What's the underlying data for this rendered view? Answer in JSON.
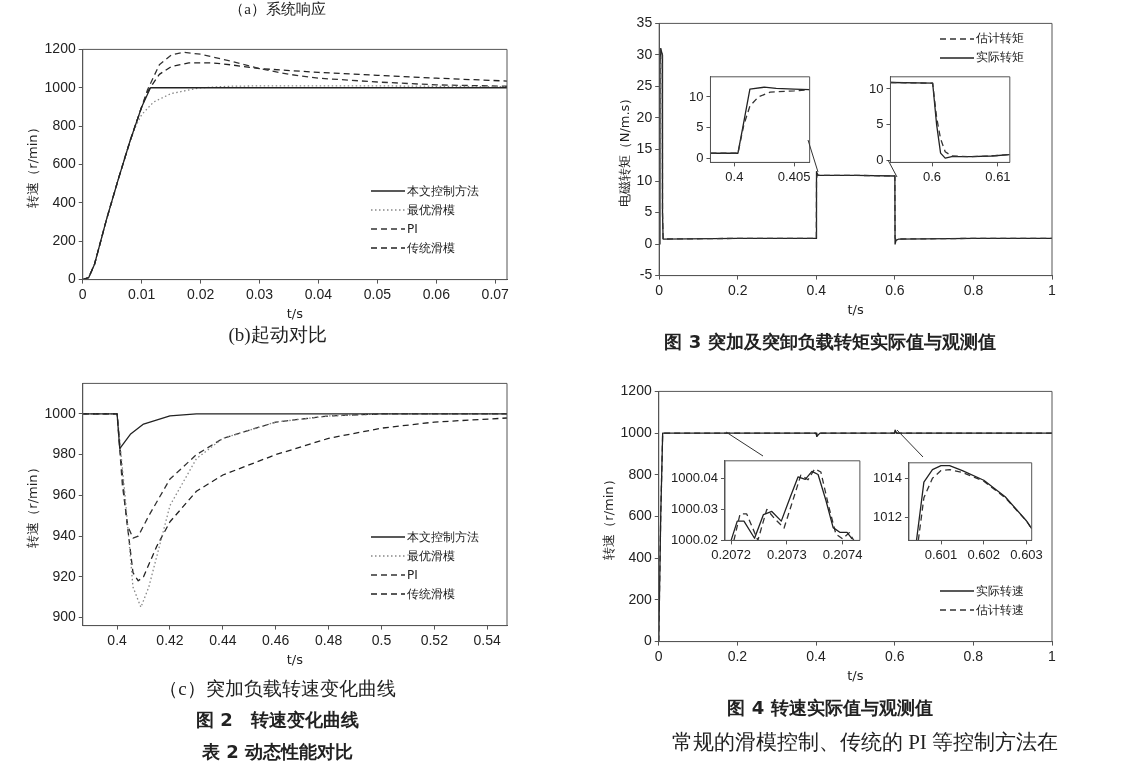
{
  "chart_data": [
    {
      "type": "line",
      "title": "(b)起动对比",
      "xlabel": "t/s",
      "ylabel": "转速（r/min）",
      "annotations": [
        "（a）系统响应"
      ],
      "xlim": [
        0,
        0.072
      ],
      "ylim": [
        0,
        1200
      ],
      "xticks": [
        0,
        0.01,
        0.02,
        0.03,
        0.04,
        0.05,
        0.06,
        0.07
      ],
      "yticks": [
        0,
        200,
        400,
        600,
        800,
        1000,
        1200
      ],
      "legend": "bottom right",
      "series": [
        {
          "name": "本文控制方法",
          "color": "#222222",
          "line_style": "solid",
          "x": [
            0,
            0.001,
            0.002,
            0.004,
            0.006,
            0.008,
            0.01,
            0.0115,
            0.02,
            0.072
          ],
          "values": [
            0,
            10,
            80,
            310,
            520,
            720,
            900,
            1000,
            1000,
            1000
          ]
        },
        {
          "name": "最优滑模",
          "color": "#888888",
          "line_style": "dotted",
          "x": [
            0,
            0.001,
            0.002,
            0.004,
            0.006,
            0.008,
            0.009,
            0.01,
            0.012,
            0.015,
            0.02,
            0.025,
            0.03,
            0.05,
            0.072
          ],
          "values": [
            0,
            10,
            80,
            310,
            520,
            720,
            800,
            860,
            925,
            970,
            1000,
            1008,
            1010,
            1010,
            1005
          ]
        },
        {
          "name": "PI",
          "color": "#333333",
          "line_style": "dashed",
          "x": [
            0,
            0.001,
            0.002,
            0.004,
            0.006,
            0.008,
            0.01,
            0.011,
            0.013,
            0.015,
            0.017,
            0.02,
            0.025,
            0.03,
            0.035,
            0.04,
            0.05,
            0.06,
            0.072
          ],
          "values": [
            0,
            10,
            80,
            310,
            520,
            720,
            900,
            990,
            1120,
            1170,
            1185,
            1175,
            1140,
            1100,
            1070,
            1050,
            1030,
            1015,
            1008
          ]
        },
        {
          "name": "传统滑模",
          "color": "#222222",
          "line_style": "dashed",
          "x": [
            0,
            0.001,
            0.002,
            0.004,
            0.006,
            0.008,
            0.01,
            0.011,
            0.013,
            0.015,
            0.018,
            0.022,
            0.025,
            0.03,
            0.04,
            0.05,
            0.06,
            0.072
          ],
          "values": [
            0,
            10,
            80,
            310,
            520,
            720,
            900,
            980,
            1070,
            1110,
            1130,
            1130,
            1120,
            1100,
            1080,
            1065,
            1050,
            1035
          ]
        }
      ]
    },
    {
      "type": "line",
      "title": "（c）突加负载转速变化曲线",
      "xlabel": "t/s",
      "ylabel": "转速（r/min）",
      "annotations": [
        "图 2　转速变化曲线",
        "表 2 动态性能对比"
      ],
      "xlim": [
        0.387,
        0.5475
      ],
      "ylim": [
        896,
        1015
      ],
      "xticks": [
        0.4,
        0.42,
        0.44,
        0.46,
        0.48,
        0.5,
        0.52,
        0.54
      ],
      "yticks": [
        900,
        920,
        940,
        960,
        980,
        1000
      ],
      "legend": "bottom right",
      "series": [
        {
          "name": "本文控制方法",
          "color": "#222222",
          "line_style": "solid",
          "x": [
            0.387,
            0.4,
            0.401,
            0.405,
            0.41,
            0.42,
            0.43,
            0.5475
          ],
          "values": [
            1000,
            1000,
            983,
            990,
            995,
            999,
            1000,
            1000
          ]
        },
        {
          "name": "最优滑模",
          "color": "#888888",
          "line_style": "dotted",
          "x": [
            0.387,
            0.4,
            0.403,
            0.406,
            0.409,
            0.412,
            0.416,
            0.42,
            0.43,
            0.44,
            0.46,
            0.48,
            0.5,
            0.5475
          ],
          "values": [
            1000,
            1000,
            960,
            915,
            905,
            915,
            935,
            955,
            978,
            988,
            996,
            999,
            1000,
            1000
          ]
        },
        {
          "name": "PI",
          "color": "#333333",
          "line_style": "dashed",
          "x": [
            0.387,
            0.4,
            0.402,
            0.404,
            0.406,
            0.408,
            0.412,
            0.42,
            0.43,
            0.44,
            0.46,
            0.48,
            0.5,
            0.5475
          ],
          "values": [
            1000,
            1000,
            965,
            945,
            939,
            940,
            950,
            968,
            980,
            988,
            996,
            999,
            1000,
            1000
          ]
        },
        {
          "name": "传统滑模",
          "color": "#222222",
          "line_style": "dashed",
          "x": [
            0.387,
            0.4,
            0.403,
            0.406,
            0.408,
            0.41,
            0.415,
            0.42,
            0.43,
            0.44,
            0.46,
            0.48,
            0.5,
            0.52,
            0.5475
          ],
          "values": [
            1000,
            1000,
            955,
            922,
            918,
            920,
            935,
            947,
            962,
            970,
            980,
            988,
            993,
            996,
            998
          ]
        }
      ]
    },
    {
      "type": "line",
      "title": "图 3 突加及突卸负载转矩实际值与观测值",
      "xlabel": "t/s",
      "ylabel": "电磁转矩（N/m.s）",
      "xlim": [
        0,
        1
      ],
      "ylim": [
        -5,
        35
      ],
      "xticks": [
        0,
        0.2,
        0.4,
        0.6,
        0.8,
        1
      ],
      "yticks": [
        -5,
        0,
        5,
        10,
        15,
        20,
        25,
        30,
        35
      ],
      "legend": "top right",
      "series": [
        {
          "name": "估计转矩",
          "color": "#333333",
          "line_style": "dashed",
          "x": [
            0,
            0.002,
            0.004,
            0.006,
            0.008,
            0.0085,
            0.01,
            0.2,
            0.4,
            0.4005,
            0.402,
            0.405,
            0.5,
            0.6,
            0.6005,
            0.603,
            0.61,
            0.8,
            1
          ],
          "values": [
            0,
            29,
            31,
            30.5,
            30,
            5,
            0.8,
            0.9,
            0.9,
            10,
            11,
            10.9,
            10.9,
            10.8,
            1,
            0.6,
            0.8,
            0.9,
            0.9
          ]
        },
        {
          "name": "实际转矩",
          "color": "#222222",
          "line_style": "solid",
          "x": [
            0,
            0.002,
            0.004,
            0.006,
            0.008,
            0.0085,
            0.01,
            0.2,
            0.4,
            0.4005,
            0.402,
            0.405,
            0.5,
            0.6,
            0.6005,
            0.603,
            0.61,
            0.8,
            1
          ],
          "values": [
            0,
            29,
            31,
            30.5,
            30,
            5,
            0.8,
            0.9,
            0.9,
            11.5,
            11.2,
            10.9,
            10.9,
            10.8,
            0,
            0.6,
            0.8,
            0.9,
            0.9
          ]
        }
      ]
    },
    {
      "type": "line",
      "xlim": [
        0.398,
        0.4063
      ],
      "ylim": [
        -0.7,
        13.3
      ],
      "xticks": [
        0.4,
        0.405
      ],
      "yticks": [
        0,
        5,
        10
      ],
      "series": [
        {
          "color": "#333333",
          "line_style": "dashed",
          "x": [
            0.398,
            0.4003,
            0.4008,
            0.4013,
            0.402,
            0.403,
            0.405,
            0.4063
          ],
          "values": [
            0.8,
            0.8,
            5.5,
            8.5,
            10,
            10.8,
            11,
            11.2
          ]
        },
        {
          "color": "#222222",
          "line_style": "solid",
          "x": [
            0.398,
            0.4003,
            0.4008,
            0.4013,
            0.4025,
            0.4035,
            0.405,
            0.4063
          ],
          "values": [
            0.8,
            0.8,
            6,
            11.3,
            11.6,
            11.4,
            11.3,
            11.2
          ]
        }
      ]
    },
    {
      "type": "line",
      "xlim": [
        0.5937,
        0.6118
      ],
      "ylim": [
        -0.3,
        11.7
      ],
      "xticks": [
        0.6,
        0.61
      ],
      "yticks": [
        0,
        5,
        10
      ],
      "series": [
        {
          "color": "#333333",
          "line_style": "dashed",
          "x": [
            0.5937,
            0.6001,
            0.6007,
            0.6013,
            0.602,
            0.603,
            0.606,
            0.609,
            0.6118
          ],
          "values": [
            10.9,
            10.8,
            6,
            3,
            1.2,
            0.6,
            0.5,
            0.6,
            0.8
          ]
        },
        {
          "color": "#222222",
          "line_style": "solid",
          "x": [
            0.5937,
            0.6001,
            0.6007,
            0.6013,
            0.602,
            0.603,
            0.606,
            0.609,
            0.6118
          ],
          "values": [
            10.9,
            10.8,
            5,
            1,
            0.3,
            0.5,
            0.5,
            0.6,
            0.8
          ]
        }
      ]
    },
    {
      "type": "line",
      "title": "图 4 转速实际值与观测值",
      "xlabel": "t/s",
      "ylabel": "转速（r/min）",
      "annotations": [
        "常规的滑模控制、传统的 PI 等控制方法在"
      ],
      "xlim": [
        0,
        1
      ],
      "ylim": [
        0,
        1200
      ],
      "xticks": [
        0,
        0.2,
        0.4,
        0.6,
        0.8,
        1
      ],
      "yticks": [
        0,
        200,
        400,
        600,
        800,
        1000,
        1200
      ],
      "legend": "bottom right",
      "series": [
        {
          "name": "实际转速",
          "color": "#222222",
          "line_style": "solid",
          "x": [
            0,
            0.005,
            0.01,
            0.4,
            0.402,
            0.41,
            0.6,
            0.601,
            0.605,
            1
          ],
          "values": [
            0,
            600,
            1000,
            1000,
            985,
            1000,
            1000,
            1014,
            1000,
            1000
          ]
        },
        {
          "name": "估计转速",
          "color": "#333333",
          "line_style": "dashed",
          "x": [
            0,
            0.005,
            0.01,
            0.4,
            0.402,
            0.41,
            0.6,
            0.601,
            0.605,
            1
          ],
          "values": [
            0,
            600,
            1000,
            1000,
            985,
            1000,
            1000,
            1014,
            1000,
            1000
          ]
        }
      ]
    },
    {
      "type": "line",
      "xlim": [
        0.207189,
        0.207431
      ],
      "ylim": [
        1000.02,
        1000.0456
      ],
      "xticks": [
        0.2072,
        0.2073,
        0.2074
      ],
      "yticks": [
        1000.02,
        1000.03,
        1000.04
      ],
      "series": [
        {
          "color": "#222222",
          "line_style": "solid",
          "x": [
            0.2072,
            0.207211,
            0.207223,
            0.207242,
            0.207258,
            0.207273,
            0.20729,
            0.207306,
            0.20732,
            0.207333,
            0.207345,
            0.207356,
            0.20737,
            0.207383,
            0.207395,
            0.207408,
            0.207417
          ],
          "values": [
            1000.02,
            1000.0262,
            1000.0262,
            1000.0207,
            1000.0283,
            1000.0293,
            1000.0262,
            1000.0339,
            1000.0404,
            1000.0396,
            1000.0422,
            1000.0412,
            1000.0329,
            1000.0241,
            1000.0226,
            1000.0226,
            1000.0205
          ]
        },
        {
          "color": "#333333",
          "line_style": "dashed",
          "x": [
            0.207205,
            0.207216,
            0.207228,
            0.207248,
            0.207264,
            0.207278,
            0.207295,
            0.207311,
            0.207325,
            0.207338,
            0.20735,
            0.207361,
            0.207375,
            0.207388,
            0.2074,
            0.207412,
            0.20742
          ],
          "values": [
            1000.02,
            1000.0285,
            1000.0285,
            1000.02,
            1000.03,
            1000.027,
            1000.024,
            1000.033,
            1000.041,
            1000.0395,
            1000.043,
            1000.042,
            1000.031,
            1000.022,
            1000.0205,
            1000.0225,
            1000.02
          ]
        }
      ]
    },
    {
      "type": "line",
      "xlim": [
        0.60025,
        0.60312
      ],
      "ylim": [
        1010.8,
        1014.8
      ],
      "xticks": [
        0.601,
        0.602,
        0.603
      ],
      "yticks": [
        1012,
        1014
      ],
      "series": [
        {
          "color": "#222222",
          "line_style": "solid",
          "x": [
            0.600427,
            0.6006,
            0.6008,
            0.601,
            0.6012,
            0.6015,
            0.602,
            0.6025,
            0.603,
            0.60312
          ],
          "values": [
            1010.8,
            1013.8,
            1014.45,
            1014.65,
            1014.65,
            1014.4,
            1013.9,
            1013.05,
            1011.8,
            1011.4
          ]
        },
        {
          "color": "#333333",
          "line_style": "dashed",
          "x": [
            0.60047,
            0.6006,
            0.6008,
            0.601,
            0.6012,
            0.6015,
            0.602,
            0.6025,
            0.603,
            0.60312
          ],
          "values": [
            1010.8,
            1013.0,
            1014.0,
            1014.4,
            1014.45,
            1014.3,
            1013.85,
            1013.0,
            1011.8,
            1011.4
          ]
        }
      ]
    }
  ]
}
